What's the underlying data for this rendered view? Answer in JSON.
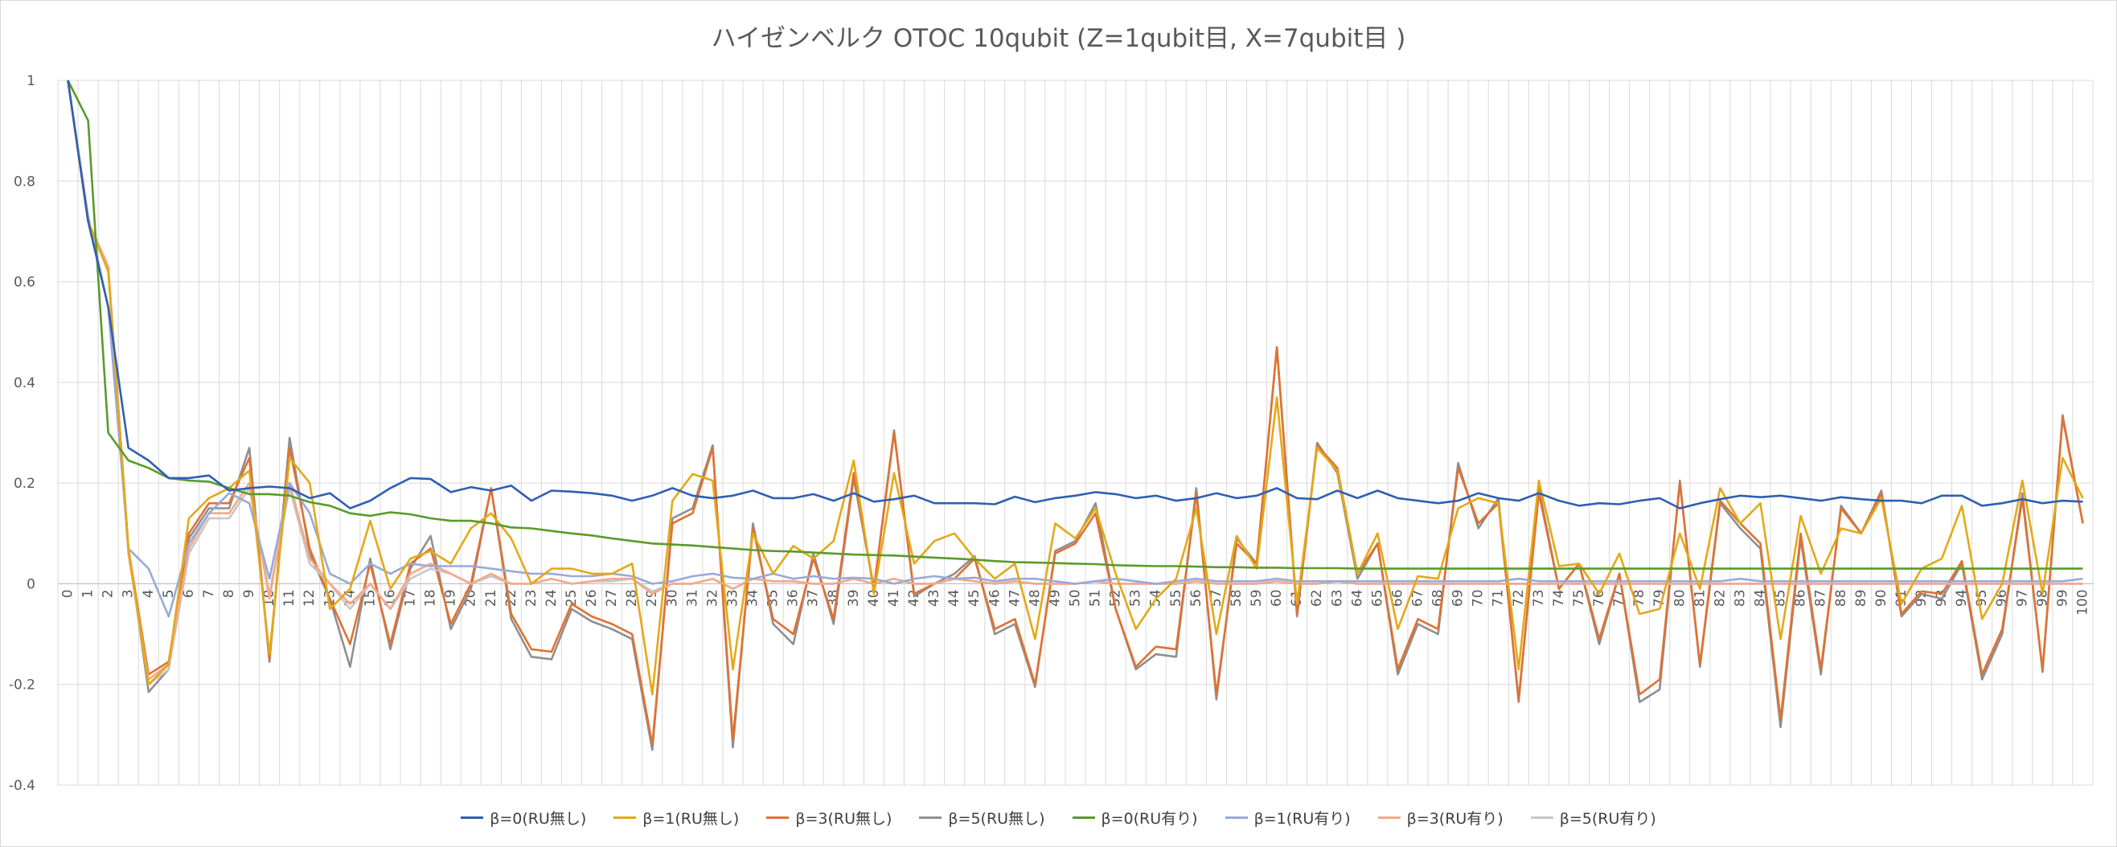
{
  "chart_data": {
    "type": "line",
    "title": "ハイゼンベルク OTOC 10qubit (Z=1qubit目, X=7qubit目 )",
    "xlabel": "",
    "ylabel": "",
    "ylim": [
      -0.4,
      1
    ],
    "yticks": [
      -0.4,
      -0.2,
      0,
      0.2,
      0.4,
      0.6,
      0.8,
      1
    ],
    "ytick_labels": [
      "-0.4",
      "-0.2",
      "0",
      "0.2",
      "0.4",
      "0.6",
      "0.8",
      "1"
    ],
    "x": [
      0,
      1,
      2,
      3,
      4,
      5,
      6,
      7,
      8,
      9,
      10,
      11,
      12,
      13,
      14,
      15,
      16,
      17,
      18,
      19,
      20,
      21,
      22,
      23,
      24,
      25,
      26,
      27,
      28,
      29,
      30,
      31,
      32,
      33,
      34,
      35,
      36,
      37,
      38,
      39,
      40,
      41,
      42,
      43,
      44,
      45,
      46,
      47,
      48,
      49,
      50,
      51,
      52,
      53,
      54,
      55,
      56,
      57,
      58,
      59,
      60,
      61,
      62,
      63,
      64,
      65,
      66,
      67,
      68,
      69,
      70,
      71,
      72,
      73,
      74,
      75,
      76,
      77,
      78,
      79,
      80,
      81,
      82,
      83,
      84,
      85,
      86,
      87,
      88,
      89,
      90,
      91,
      92,
      93,
      94,
      95,
      96,
      97,
      98,
      99,
      100
    ],
    "grid": true,
    "legend_position": "bottom",
    "series": [
      {
        "name": "β=0(RU無し)",
        "color": "#2f5fb3",
        "values": [
          1.0,
          0.72,
          0.55,
          0.27,
          0.245,
          0.21,
          0.21,
          0.215,
          0.185,
          0.19,
          0.193,
          0.19,
          0.17,
          0.18,
          0.15,
          0.165,
          0.19,
          0.21,
          0.208,
          0.182,
          0.192,
          0.185,
          0.195,
          0.165,
          0.185,
          0.183,
          0.18,
          0.175,
          0.165,
          0.175,
          0.19,
          0.175,
          0.17,
          0.175,
          0.185,
          0.17,
          0.17,
          0.178,
          0.165,
          0.18,
          0.163,
          0.168,
          0.175,
          0.16,
          0.16,
          0.16,
          0.158,
          0.173,
          0.162,
          0.17,
          0.175,
          0.182,
          0.178,
          0.17,
          0.175,
          0.165,
          0.17,
          0.18,
          0.17,
          0.175,
          0.19,
          0.17,
          0.168,
          0.185,
          0.17,
          0.185,
          0.17,
          0.165,
          0.16,
          0.165,
          0.18,
          0.17,
          0.165,
          0.18,
          0.165,
          0.155,
          0.16,
          0.158,
          0.165,
          0.17,
          0.15,
          0.16,
          0.168,
          0.175,
          0.172,
          0.175,
          0.17,
          0.165,
          0.172,
          0.168,
          0.165,
          0.165,
          0.16,
          0.175,
          0.175,
          0.155,
          0.16,
          0.168,
          0.16,
          0.165,
          0.163
        ]
      },
      {
        "name": "β=1(RU無し)",
        "color": "#e3a917",
        "values": [
          1.0,
          0.72,
          0.62,
          0.07,
          -0.2,
          -0.16,
          0.13,
          0.17,
          0.19,
          0.225,
          -0.14,
          0.25,
          0.2,
          -0.05,
          -0.01,
          0.125,
          -0.01,
          0.05,
          0.065,
          0.04,
          0.11,
          0.14,
          0.09,
          0.0,
          0.03,
          0.03,
          0.02,
          0.02,
          0.04,
          -0.22,
          0.165,
          0.218,
          0.205,
          -0.17,
          0.1,
          0.02,
          0.075,
          0.05,
          0.085,
          0.245,
          -0.02,
          0.22,
          0.04,
          0.085,
          0.1,
          0.05,
          0.01,
          0.04,
          -0.11,
          0.12,
          0.09,
          0.15,
          0.02,
          -0.09,
          -0.03,
          0.01,
          0.15,
          -0.1,
          0.095,
          0.03,
          0.37,
          -0.04,
          0.27,
          0.225,
          0.02,
          0.1,
          -0.09,
          0.015,
          0.01,
          0.15,
          0.17,
          0.16,
          -0.17,
          0.205,
          0.035,
          0.04,
          -0.02,
          0.06,
          -0.06,
          -0.05,
          0.1,
          -0.01,
          0.19,
          0.12,
          0.16,
          -0.11,
          0.135,
          0.02,
          0.11,
          0.1,
          0.17,
          -0.04,
          0.03,
          0.05,
          0.155,
          -0.07,
          0.0,
          0.205,
          -0.02,
          0.25,
          0.17
        ]
      },
      {
        "name": "β=3(RU無し)",
        "color": "#e07232",
        "values": [
          1.0,
          0.72,
          0.63,
          0.07,
          -0.18,
          -0.155,
          0.1,
          0.16,
          0.16,
          0.25,
          -0.15,
          0.27,
          0.07,
          -0.03,
          -0.12,
          0.04,
          -0.12,
          0.04,
          0.07,
          -0.08,
          0.0,
          0.19,
          -0.06,
          -0.13,
          -0.135,
          -0.04,
          -0.065,
          -0.08,
          -0.1,
          -0.32,
          0.12,
          0.14,
          0.27,
          -0.31,
          0.11,
          -0.07,
          -0.1,
          0.05,
          -0.07,
          0.22,
          -0.01,
          0.3,
          -0.02,
          0.0,
          0.01,
          0.05,
          -0.09,
          -0.07,
          -0.2,
          0.06,
          0.08,
          0.14,
          -0.05,
          -0.165,
          -0.125,
          -0.13,
          0.18,
          -0.22,
          0.08,
          0.04,
          0.47,
          -0.06,
          0.275,
          0.23,
          0.02,
          0.08,
          -0.17,
          -0.07,
          -0.09,
          0.23,
          0.12,
          0.16,
          -0.23,
          0.18,
          -0.01,
          0.04,
          -0.11,
          0.02,
          -0.22,
          -0.19,
          0.2,
          -0.16,
          0.165,
          0.12,
          0.08,
          -0.27,
          0.1,
          -0.17,
          0.15,
          0.1,
          0.18,
          -0.06,
          -0.015,
          -0.02,
          0.045,
          -0.18,
          -0.09,
          0.17,
          -0.17,
          0.33,
          0.12
        ]
      },
      {
        "name": "β=5(RU無し)",
        "color": "#8f8f8f",
        "values": [
          1.0,
          0.72,
          0.63,
          0.07,
          -0.215,
          -0.17,
          0.09,
          0.15,
          0.15,
          0.27,
          -0.155,
          0.29,
          0.06,
          -0.03,
          -0.165,
          0.05,
          -0.13,
          0.03,
          0.095,
          -0.09,
          -0.01,
          0.19,
          -0.07,
          -0.145,
          -0.15,
          -0.05,
          -0.075,
          -0.09,
          -0.11,
          -0.33,
          0.13,
          0.15,
          0.275,
          -0.325,
          0.12,
          -0.08,
          -0.12,
          0.06,
          -0.08,
          0.21,
          -0.01,
          0.305,
          -0.025,
          0.0,
          0.02,
          0.055,
          -0.1,
          -0.08,
          -0.205,
          0.065,
          0.085,
          0.16,
          -0.05,
          -0.17,
          -0.14,
          -0.145,
          0.19,
          -0.23,
          0.09,
          0.04,
          0.47,
          -0.065,
          0.28,
          0.22,
          0.01,
          0.08,
          -0.18,
          -0.08,
          -0.1,
          0.24,
          0.11,
          0.17,
          -0.235,
          0.19,
          -0.01,
          0.04,
          -0.12,
          0.02,
          -0.235,
          -0.21,
          0.205,
          -0.165,
          0.16,
          0.11,
          0.07,
          -0.285,
          0.09,
          -0.18,
          0.155,
          0.1,
          0.185,
          -0.065,
          -0.02,
          -0.03,
          0.04,
          -0.19,
          -0.1,
          0.18,
          -0.175,
          0.335,
          0.12
        ]
      },
      {
        "name": "β=0(RU有り)",
        "color": "#5b9a2a",
        "values": [
          1.0,
          0.92,
          0.3,
          0.245,
          0.23,
          0.21,
          0.205,
          0.203,
          0.19,
          0.178,
          0.178,
          0.175,
          0.162,
          0.155,
          0.14,
          0.135,
          0.142,
          0.138,
          0.13,
          0.125,
          0.125,
          0.12,
          0.112,
          0.11,
          0.105,
          0.1,
          0.096,
          0.09,
          0.085,
          0.08,
          0.078,
          0.076,
          0.073,
          0.07,
          0.067,
          0.065,
          0.064,
          0.062,
          0.06,
          0.058,
          0.057,
          0.056,
          0.054,
          0.052,
          0.05,
          0.048,
          0.045,
          0.043,
          0.042,
          0.041,
          0.04,
          0.039,
          0.037,
          0.036,
          0.035,
          0.035,
          0.034,
          0.033,
          0.033,
          0.032,
          0.032,
          0.031,
          0.031,
          0.031,
          0.03,
          0.03,
          0.03,
          0.03,
          0.03,
          0.03,
          0.03,
          0.03,
          0.03,
          0.03,
          0.03,
          0.03,
          0.03,
          0.03,
          0.03,
          0.03,
          0.03,
          0.03,
          0.03,
          0.03,
          0.03,
          0.03,
          0.03,
          0.03,
          0.03,
          0.03,
          0.03,
          0.03,
          0.03,
          0.03,
          0.03,
          0.03,
          0.03,
          0.03,
          0.03,
          0.03,
          0.03
        ]
      },
      {
        "name": "β=1(RU有り)",
        "color": "#9aa9d8",
        "values": [
          1.0,
          0.73,
          0.55,
          0.07,
          0.03,
          -0.065,
          0.08,
          0.14,
          0.18,
          0.16,
          0.01,
          0.2,
          0.14,
          0.02,
          0.0,
          0.04,
          0.02,
          0.04,
          0.035,
          0.035,
          0.035,
          0.03,
          0.025,
          0.02,
          0.02,
          0.015,
          0.015,
          0.02,
          0.015,
          0.0,
          0.005,
          0.015,
          0.02,
          0.012,
          0.01,
          0.02,
          0.01,
          0.015,
          0.01,
          0.012,
          0.01,
          0.0,
          0.01,
          0.015,
          0.01,
          0.012,
          0.005,
          0.01,
          0.01,
          0.005,
          0.0,
          0.005,
          0.01,
          0.005,
          0.0,
          0.005,
          0.01,
          0.005,
          0.005,
          0.005,
          0.01,
          0.005,
          0.005,
          0.005,
          0.005,
          0.005,
          0.005,
          0.005,
          0.005,
          0.005,
          0.005,
          0.005,
          0.01,
          0.005,
          0.005,
          0.005,
          0.005,
          0.005,
          0.005,
          0.005,
          0.005,
          0.005,
          0.005,
          0.01,
          0.005,
          0.005,
          0.005,
          0.005,
          0.005,
          0.005,
          0.005,
          0.005,
          0.005,
          0.005,
          0.005,
          0.005,
          0.005,
          0.005,
          0.005,
          0.005,
          0.01
        ]
      },
      {
        "name": "β=3(RU有り)",
        "color": "#f4a98a",
        "values": [
          1.0,
          0.72,
          0.63,
          0.06,
          -0.19,
          -0.16,
          0.07,
          0.14,
          0.14,
          0.2,
          -0.03,
          0.2,
          0.05,
          0.0,
          -0.04,
          0.0,
          -0.05,
          0.02,
          0.04,
          0.02,
          0.0,
          0.02,
          0.0,
          0.0,
          0.01,
          0.0,
          0.005,
          0.01,
          0.01,
          -0.02,
          0.0,
          0.0,
          0.01,
          -0.01,
          0.01,
          0.005,
          0.005,
          0.0,
          0.0,
          0.01,
          0.0,
          0.01,
          0.0,
          0.0,
          0.01,
          0.005,
          0.0,
          0.005,
          0.0,
          0.0,
          0.0,
          0.005,
          0.0,
          0.0,
          0.0,
          0.0,
          0.005,
          0.0,
          0.0,
          0.0,
          0.005,
          0.0,
          0.0,
          0.005,
          0.0,
          0.0,
          0.0,
          0.0,
          0.0,
          0.0,
          0.0,
          0.0,
          0.0,
          0.0,
          0.0,
          0.0,
          0.0,
          0.0,
          0.0,
          0.0,
          0.0,
          0.0,
          0.0,
          0.0,
          0.0,
          0.0,
          0.0,
          0.0,
          0.0,
          0.0,
          0.0,
          0.0,
          0.0,
          0.0,
          0.0,
          0.0,
          0.0,
          0.0,
          0.0,
          0.0,
          0.0
        ]
      },
      {
        "name": "β=5(RU有り)",
        "color": "#c7c7c7",
        "values": [
          1.0,
          0.72,
          0.63,
          0.06,
          -0.2,
          -0.17,
          0.06,
          0.13,
          0.13,
          0.19,
          -0.02,
          0.19,
          0.04,
          0.0,
          -0.05,
          0.0,
          -0.05,
          0.01,
          0.03,
          0.02,
          0.0,
          0.015,
          0.0,
          0.0,
          0.01,
          0.0,
          0.005,
          0.005,
          0.01,
          -0.015,
          0.0,
          0.0,
          0.01,
          -0.01,
          0.01,
          0.005,
          0.005,
          0.0,
          0.0,
          0.01,
          0.0,
          0.01,
          0.0,
          0.0,
          0.01,
          0.005,
          0.0,
          0.005,
          0.0,
          0.0,
          0.0,
          0.005,
          0.0,
          0.0,
          0.0,
          0.0,
          0.005,
          0.0,
          0.0,
          0.0,
          0.005,
          0.0,
          0.0,
          0.005,
          0.0,
          0.0,
          0.0,
          0.0,
          0.0,
          0.0,
          0.0,
          0.0,
          0.0,
          0.0,
          0.0,
          0.0,
          0.0,
          0.0,
          0.0,
          0.0,
          0.0,
          0.0,
          0.0,
          0.0,
          0.0,
          0.0,
          0.0,
          0.0,
          0.0,
          0.0,
          0.0,
          0.0,
          0.0,
          0.0,
          0.0,
          0.0,
          0.0,
          0.0,
          0.0,
          0.0,
          0.0
        ]
      }
    ]
  }
}
